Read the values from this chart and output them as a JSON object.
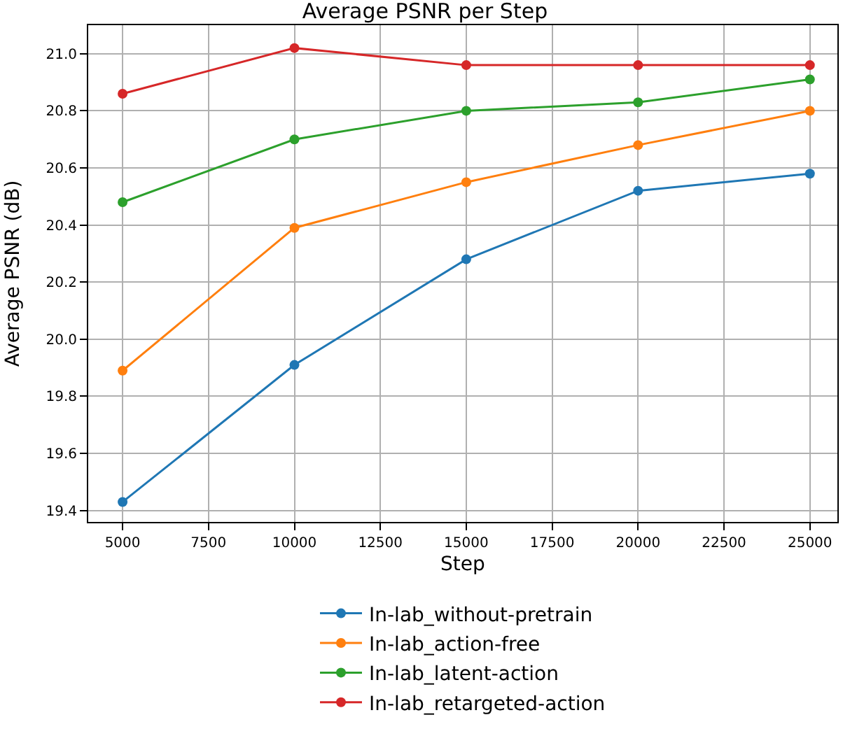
{
  "chart_data": {
    "type": "line",
    "title": "Average PSNR per Step",
    "xlabel": "Step",
    "ylabel": "Average PSNR (dB)",
    "x": [
      5000,
      10000,
      15000,
      20000,
      25000
    ],
    "series": [
      {
        "name": "In-lab_without-pretrain",
        "color": "#1f77b4",
        "values": [
          19.43,
          19.91,
          20.28,
          20.52,
          20.58
        ]
      },
      {
        "name": "In-lab_action-free",
        "color": "#ff7f0e",
        "values": [
          19.89,
          20.39,
          20.55,
          20.68,
          20.8
        ]
      },
      {
        "name": "In-lab_latent-action",
        "color": "#2ca02c",
        "values": [
          20.48,
          20.7,
          20.8,
          20.83,
          20.91
        ]
      },
      {
        "name": "In-lab_retargeted-action",
        "color": "#d62728",
        "values": [
          20.86,
          21.02,
          20.96,
          20.96,
          20.96
        ]
      }
    ],
    "xlim": [
      4000,
      25800
    ],
    "xticks": [
      5000,
      7500,
      10000,
      12500,
      15000,
      17500,
      20000,
      22500,
      25000
    ],
    "ylim": [
      19.36,
      21.1
    ],
    "yticks": [
      {
        "value": 19.4,
        "label": "19.4"
      },
      {
        "value": 19.6,
        "label": "19.6"
      },
      {
        "value": 19.8,
        "label": "19.8"
      },
      {
        "value": 20.0,
        "label": "20.0"
      },
      {
        "value": 20.2,
        "label": "20.2"
      },
      {
        "value": 20.4,
        "label": "20.4"
      },
      {
        "value": 20.6,
        "label": "20.6"
      },
      {
        "value": 20.8,
        "label": "20.8"
      },
      {
        "value": 21.0,
        "label": "21.0"
      }
    ],
    "grid": true,
    "legend": "bottom",
    "marker": "circle",
    "line_style": "solid"
  }
}
